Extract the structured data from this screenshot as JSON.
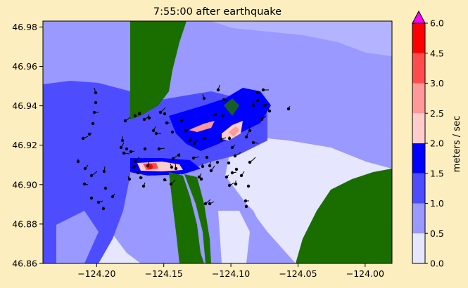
{
  "chart_data": {
    "type": "heatmap",
    "title": "7:55:00 after earthquake",
    "xlabel": "",
    "ylabel": "",
    "xlim": [
      -124.24,
      -123.98
    ],
    "ylim": [
      46.86,
      46.983
    ],
    "x_ticks": [
      -124.2,
      -124.15,
      -124.1,
      -124.05,
      -124.0
    ],
    "x_tick_labels": [
      "−124.20",
      "−124.15",
      "−124.10",
      "−124.05",
      "−124.00"
    ],
    "y_ticks": [
      46.86,
      46.88,
      46.9,
      46.92,
      46.94,
      46.96,
      46.98
    ],
    "y_tick_labels": [
      "46.86",
      "46.88",
      "46.90",
      "46.92",
      "46.94",
      "46.96",
      "46.98"
    ],
    "colorbar": {
      "label": "meters / sec",
      "levels": [
        0.0,
        0.5,
        1.0,
        1.5,
        2.0,
        2.5,
        3.0,
        4.5,
        6.0
      ],
      "level_labels": [
        "0.0",
        "0.5",
        "1.0",
        "1.5",
        "2.0",
        "2.5",
        "3.0",
        "4.5",
        "6.0"
      ],
      "colors": [
        "#e6e6ff",
        "#9999ff",
        "#4d4dff",
        "#0000ff",
        "#ffcccc",
        "#ff9999",
        "#ff4d4d",
        "#ff0000"
      ],
      "extend_color": "#ff00ff"
    },
    "land_color": "#1a6e00",
    "markers": "particle tracers with trailing paths"
  }
}
